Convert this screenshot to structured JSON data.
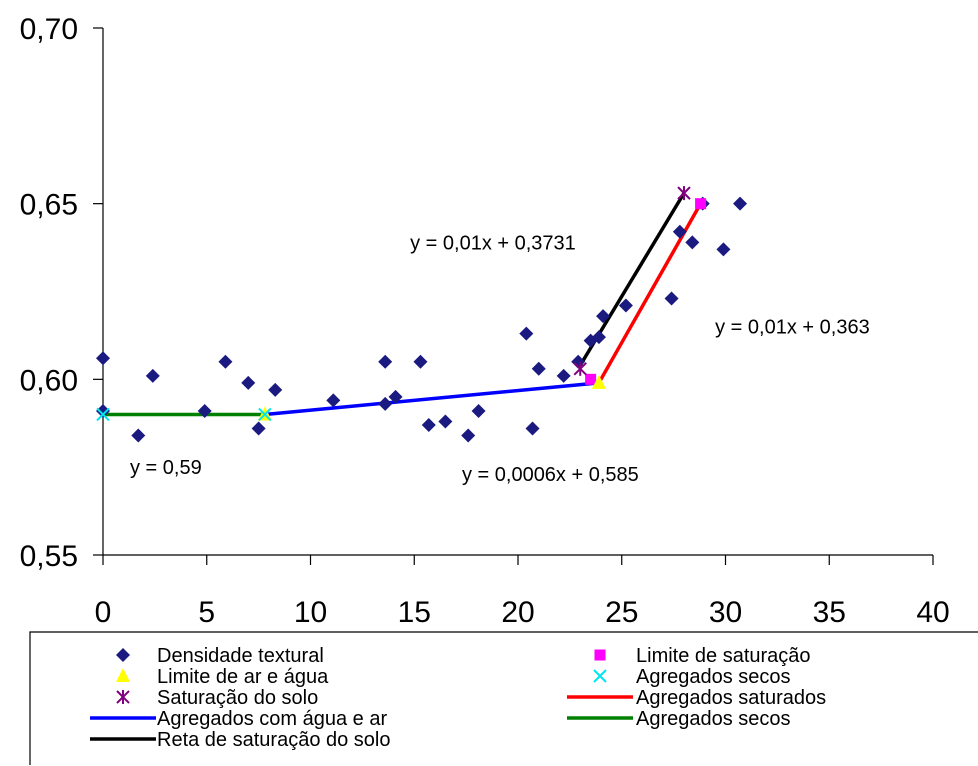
{
  "chart_data": {
    "type": "scatter",
    "title": "",
    "xlabel": "",
    "ylabel": "",
    "xlim": [
      0,
      40
    ],
    "ylim": [
      0.55,
      0.7
    ],
    "x_ticks": [
      "0",
      "5",
      "10",
      "15",
      "20",
      "25",
      "30",
      "35",
      "40"
    ],
    "y_ticks": [
      "0,55",
      "0,60",
      "0,65",
      "0,70"
    ],
    "grid": false,
    "legend_position": "bottom",
    "series": [
      {
        "name": "Densidade textural",
        "kind": "points",
        "marker": "diamond",
        "color": "#1a1a80",
        "points": [
          [
            0.0,
            0.606
          ],
          [
            0.0,
            0.591
          ],
          [
            1.7,
            0.584
          ],
          [
            2.4,
            0.601
          ],
          [
            4.9,
            0.591
          ],
          [
            5.9,
            0.605
          ],
          [
            7.0,
            0.599
          ],
          [
            7.5,
            0.586
          ],
          [
            8.3,
            0.597
          ],
          [
            11.1,
            0.594
          ],
          [
            13.6,
            0.605
          ],
          [
            13.6,
            0.593
          ],
          [
            14.1,
            0.595
          ],
          [
            15.3,
            0.605
          ],
          [
            15.7,
            0.587
          ],
          [
            16.5,
            0.588
          ],
          [
            17.6,
            0.584
          ],
          [
            18.1,
            0.591
          ],
          [
            20.4,
            0.613
          ],
          [
            20.7,
            0.586
          ],
          [
            21.0,
            0.603
          ],
          [
            22.2,
            0.601
          ],
          [
            22.9,
            0.605
          ],
          [
            23.5,
            0.611
          ],
          [
            23.9,
            0.612
          ],
          [
            24.1,
            0.618
          ],
          [
            25.2,
            0.621
          ],
          [
            27.4,
            0.623
          ],
          [
            27.8,
            0.642
          ],
          [
            28.4,
            0.639
          ],
          [
            28.9,
            0.65
          ],
          [
            29.9,
            0.637
          ],
          [
            30.7,
            0.65
          ]
        ]
      },
      {
        "name": "Limite de saturação",
        "kind": "points",
        "marker": "square",
        "color": "#ff00ff",
        "points": [
          [
            23.5,
            0.6
          ],
          [
            28.8,
            0.65
          ]
        ]
      },
      {
        "name": "Limite de ar e água",
        "kind": "points",
        "marker": "triangle",
        "color": "#ffff00",
        "points": [
          [
            7.8,
            0.59
          ],
          [
            23.9,
            0.599
          ]
        ]
      },
      {
        "name": "Agregados secos",
        "kind": "points",
        "marker": "x",
        "color": "#00e5ee",
        "points": [
          [
            0.0,
            0.59
          ],
          [
            7.8,
            0.59
          ]
        ]
      },
      {
        "name": "Saturação do solo",
        "kind": "points",
        "marker": "star",
        "color": "#800080",
        "points": [
          [
            23.0,
            0.603
          ],
          [
            28.0,
            0.653
          ]
        ]
      },
      {
        "name": "Agregados saturados",
        "kind": "line",
        "color": "#ff0000",
        "points": [
          [
            23.9,
            0.599
          ],
          [
            28.8,
            0.65
          ]
        ]
      },
      {
        "name": "Agregados com água e ar",
        "kind": "line",
        "color": "#0000ff",
        "points": [
          [
            7.8,
            0.59
          ],
          [
            23.9,
            0.599
          ]
        ]
      },
      {
        "name": "Agregados secos",
        "kind": "line",
        "color": "#008000",
        "points": [
          [
            0.0,
            0.59
          ],
          [
            7.8,
            0.59
          ]
        ]
      },
      {
        "name": "Reta de saturação do solo",
        "kind": "line",
        "color": "#000000",
        "points": [
          [
            23.0,
            0.604
          ],
          [
            28.0,
            0.653
          ]
        ]
      }
    ],
    "annotations": [
      {
        "text": "y = 0,59",
        "x": 1.3,
        "y": 0.573
      },
      {
        "text": "y = 0,0006x + 0,585",
        "x": 17.3,
        "y": 0.571
      },
      {
        "text": "y = 0,01x + 0,3731",
        "x": 14.8,
        "y": 0.637
      },
      {
        "text": "y = 0,01x + 0,363",
        "x": 29.5,
        "y": 0.613
      }
    ],
    "legend": [
      {
        "label": "Densidade textural",
        "series": 0
      },
      {
        "label": "Limite de saturação",
        "series": 1
      },
      {
        "label": "Limite de ar e água",
        "series": 2
      },
      {
        "label": "Agregados secos",
        "series": 3
      },
      {
        "label": "Saturação do solo",
        "series": 4
      },
      {
        "label": "Agregados saturados",
        "series": 5
      },
      {
        "label": "Agregados com água e ar",
        "series": 6
      },
      {
        "label": "Agregados secos",
        "series": 7
      },
      {
        "label": "Reta de saturação do solo",
        "series": 8
      }
    ]
  }
}
